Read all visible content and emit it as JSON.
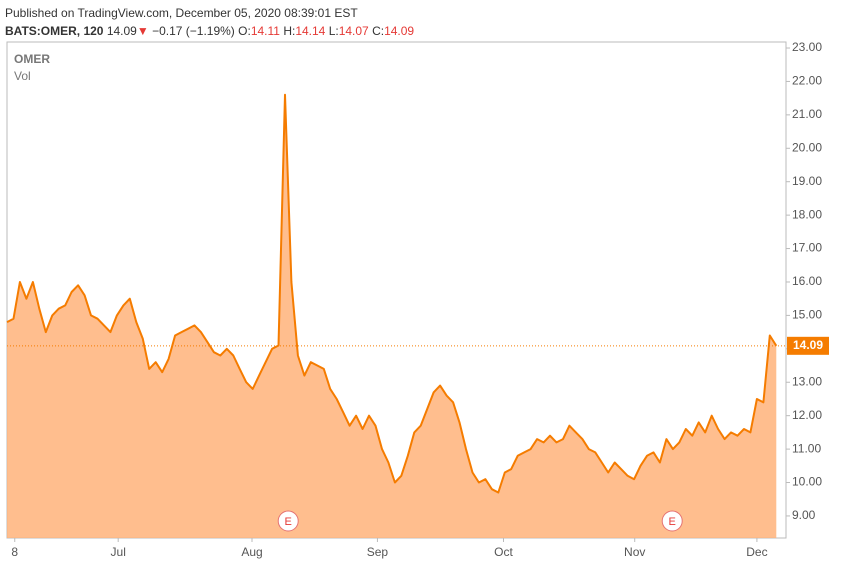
{
  "header": {
    "published": "Published on TradingView.com, December 05, 2020 08:39:01 EST",
    "symbol": "BATS:OMER, 120",
    "price": "14.09",
    "arrow": "▼",
    "change": "−0.17 (−1.19%)",
    "o_label": "O:",
    "o": "14.11",
    "h_label": "H:",
    "h": "14.14",
    "l_label": "L:",
    "l": "14.07",
    "c_label": "C:",
    "c": "14.09"
  },
  "chart_data": {
    "type": "area",
    "legend": [
      "OMER",
      "Vol"
    ],
    "series": [
      {
        "name": "OMER",
        "color": "#f57c00",
        "fill": "#ffb37a",
        "values": [
          14.8,
          14.9,
          16.0,
          15.5,
          16.0,
          15.2,
          14.5,
          15.0,
          15.2,
          15.3,
          15.7,
          15.9,
          15.6,
          15.0,
          14.9,
          14.7,
          14.5,
          15.0,
          15.3,
          15.5,
          14.8,
          14.3,
          13.4,
          13.6,
          13.3,
          13.7,
          14.4,
          14.5,
          14.6,
          14.7,
          14.5,
          14.2,
          13.9,
          13.8,
          14.0,
          13.8,
          13.4,
          13.0,
          12.8,
          13.2,
          13.6,
          14.0,
          14.1,
          21.6,
          16.0,
          13.8,
          13.2,
          13.6,
          13.5,
          13.4,
          12.8,
          12.5,
          12.1,
          11.7,
          12.0,
          11.6,
          12.0,
          11.7,
          11.0,
          10.6,
          10.0,
          10.2,
          10.8,
          11.5,
          11.7,
          12.2,
          12.7,
          12.9,
          12.6,
          12.4,
          11.8,
          11.0,
          10.3,
          10.0,
          10.1,
          9.8,
          9.7,
          10.3,
          10.4,
          10.8,
          10.9,
          11.0,
          11.3,
          11.2,
          11.4,
          11.2,
          11.3,
          11.7,
          11.5,
          11.3,
          11.0,
          10.9,
          10.6,
          10.3,
          10.6,
          10.4,
          10.2,
          10.1,
          10.5,
          10.8,
          10.9,
          10.6,
          11.3,
          11.0,
          11.2,
          11.6,
          11.4,
          11.8,
          11.5,
          12.0,
          11.6,
          11.3,
          11.5,
          11.4,
          11.6,
          11.5,
          12.5,
          12.4,
          14.4,
          14.09
        ]
      }
    ],
    "last_value": {
      "value": 14.09,
      "label": "14.09"
    },
    "events": [
      {
        "x": 43.5,
        "label": "E"
      },
      {
        "x": 102.9,
        "label": "E"
      }
    ],
    "xlim": [
      0,
      120.5
    ],
    "ylim": [
      8.34,
      23.18
    ],
    "xticks": [
      {
        "value": 1.2,
        "label": "8"
      },
      {
        "value": 17.2,
        "label": "Jul"
      },
      {
        "value": 37.9,
        "label": "Aug"
      },
      {
        "value": 57.3,
        "label": "Sep"
      },
      {
        "value": 76.8,
        "label": "Oct"
      },
      {
        "value": 97.1,
        "label": "Nov"
      },
      {
        "value": 116.0,
        "label": "Dec"
      }
    ],
    "yticks": [
      {
        "value": 9,
        "label": "9.00"
      },
      {
        "value": 10,
        "label": "10.00"
      },
      {
        "value": 11,
        "label": "11.00"
      },
      {
        "value": 12,
        "label": "12.00"
      },
      {
        "value": 13,
        "label": "13.00"
      },
      {
        "value": 14,
        "label": "14.00"
      },
      {
        "value": 15,
        "label": "15.00"
      },
      {
        "value": 16,
        "label": "16.00"
      },
      {
        "value": 17,
        "label": "17.00"
      },
      {
        "value": 18,
        "label": "18.00"
      },
      {
        "value": 19,
        "label": "19.00"
      },
      {
        "value": 20,
        "label": "20.00"
      },
      {
        "value": 21,
        "label": "21.00"
      },
      {
        "value": 22,
        "label": "22.00"
      },
      {
        "value": 23,
        "label": "23.00"
      }
    ]
  }
}
